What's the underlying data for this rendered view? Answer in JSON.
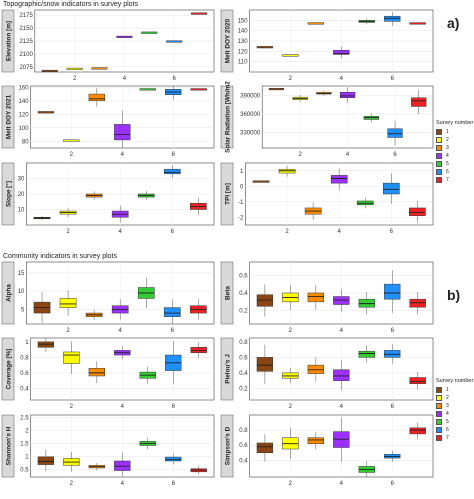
{
  "section_a": {
    "title": "Topographic/snow indicators in survey plots",
    "tag": "a)"
  },
  "section_b": {
    "title": "Community indicators in survey plots",
    "tag": "b)"
  },
  "legend": {
    "title": "Survey number",
    "entries": [
      {
        "label": "1",
        "color": "#8B4513"
      },
      {
        "label": "2",
        "color": "#FFFF00"
      },
      {
        "label": "3",
        "color": "#FF8C00"
      },
      {
        "label": "4",
        "color": "#9B30FF"
      },
      {
        "label": "5",
        "color": "#32CD32"
      },
      {
        "label": "6",
        "color": "#1E90FF"
      },
      {
        "label": "7",
        "color": "#EE2222"
      }
    ]
  },
  "chart_data": [
    {
      "type": "box",
      "ylabel": "Elevation [m]",
      "x_ticks": [
        "2",
        "4",
        "6"
      ],
      "ylim": [
        2065,
        2185
      ],
      "y_ticks": [
        2075,
        2100,
        2125,
        2150,
        2175
      ],
      "boxes": [
        {
          "survey": 1,
          "q1": 2067,
          "median": 2067,
          "q3": 2067
        },
        {
          "survey": 2,
          "q1": 2071,
          "median": 2071,
          "q3": 2071
        },
        {
          "survey": 3,
          "q1": 2072,
          "median": 2072,
          "q3": 2072
        },
        {
          "survey": 4,
          "q1": 2133,
          "median": 2133,
          "q3": 2133
        },
        {
          "survey": 5,
          "q1": 2141,
          "median": 2141,
          "q3": 2141
        },
        {
          "survey": 6,
          "q1": 2124,
          "median": 2124,
          "q3": 2124
        },
        {
          "survey": 7,
          "q1": 2178,
          "median": 2178,
          "q3": 2178
        }
      ]
    },
    {
      "type": "box",
      "ylabel": "Melt DOY 2020",
      "x_ticks": [
        "2",
        "4",
        "6"
      ],
      "ylim": [
        100,
        160
      ],
      "y_ticks": [
        110,
        120,
        130,
        140,
        150
      ],
      "boxes": [
        {
          "survey": 1,
          "q1": 124,
          "median": 124,
          "q3": 124
        },
        {
          "survey": 2,
          "q1": 116,
          "median": 116,
          "q3": 116
        },
        {
          "survey": 3,
          "q1": 147,
          "median": 147,
          "q3": 147
        },
        {
          "survey": 4,
          "q1": 117,
          "median": 118,
          "q3": 121
        },
        {
          "survey": 5,
          "q1": 148,
          "median": 149,
          "q3": 150
        },
        {
          "survey": 6,
          "q1": 149,
          "median": 152,
          "q3": 154
        },
        {
          "survey": 7,
          "q1": 147,
          "median": 147,
          "q3": 147
        }
      ]
    },
    {
      "type": "box",
      "ylabel": "Melt DOY 2021",
      "x_ticks": [
        "2",
        "4",
        "6"
      ],
      "ylim": [
        70,
        162
      ],
      "y_ticks": [
        80,
        100,
        120,
        140,
        160
      ],
      "boxes": [
        {
          "survey": 1,
          "q1": 123,
          "median": 123,
          "q3": 123
        },
        {
          "survey": 2,
          "q1": 81,
          "median": 81,
          "q3": 81
        },
        {
          "survey": 3,
          "q1": 140,
          "median": 143,
          "q3": 150
        },
        {
          "survey": 4,
          "q1": 82,
          "median": 90,
          "q3": 105
        },
        {
          "survey": 5,
          "q1": 157,
          "median": 157,
          "q3": 157
        },
        {
          "survey": 6,
          "q1": 149,
          "median": 153,
          "q3": 157
        },
        {
          "survey": 7,
          "q1": 157,
          "median": 157,
          "q3": 157
        }
      ]
    },
    {
      "type": "box",
      "ylabel": "Solar Radiation [Wh/m2",
      "x_ticks": [
        "2",
        "4",
        "6"
      ],
      "ylim": [
        305000,
        405000
      ],
      "y_ticks": [
        330000,
        360000,
        390000
      ],
      "boxes": [
        {
          "survey": 1,
          "q1": 400000,
          "median": 400000,
          "q3": 400000
        },
        {
          "survey": 2,
          "q1": 383000,
          "median": 385000,
          "q3": 387000
        },
        {
          "survey": 3,
          "q1": 392000,
          "median": 393000,
          "q3": 395000
        },
        {
          "survey": 4,
          "q1": 386000,
          "median": 389000,
          "q3": 395000
        },
        {
          "survey": 5,
          "q1": 351000,
          "median": 354000,
          "q3": 356000
        },
        {
          "survey": 6,
          "q1": 322000,
          "median": 328000,
          "q3": 336000
        },
        {
          "survey": 7,
          "q1": 372000,
          "median": 381000,
          "q3": 386000
        }
      ]
    },
    {
      "type": "box",
      "ylabel": "Slope [°]",
      "x_ticks": [
        "2",
        "4",
        "6"
      ],
      "ylim": [
        0,
        40
      ],
      "y_ticks": [
        10,
        20,
        30
      ],
      "boxes": [
        {
          "survey": 1,
          "q1": 4,
          "median": 4.5,
          "q3": 5
        },
        {
          "survey": 2,
          "q1": 7,
          "median": 8,
          "q3": 9
        },
        {
          "survey": 3,
          "q1": 18,
          "median": 19,
          "q3": 20
        },
        {
          "survey": 4,
          "q1": 5,
          "median": 7,
          "q3": 9
        },
        {
          "survey": 5,
          "q1": 18,
          "median": 19,
          "q3": 20
        },
        {
          "survey": 6,
          "q1": 33,
          "median": 34,
          "q3": 36
        },
        {
          "survey": 7,
          "q1": 10,
          "median": 12,
          "q3": 14
        }
      ]
    },
    {
      "type": "box",
      "ylabel": "TPI [m]",
      "x_ticks": [
        "2",
        "4",
        "6"
      ],
      "ylim": [
        -2.5,
        1.5
      ],
      "y_ticks": [
        -2,
        -1,
        0,
        1
      ],
      "boxes": [
        {
          "survey": 1,
          "q1": 0.3,
          "median": 0.3,
          "q3": 0.3
        },
        {
          "survey": 2,
          "q1": 0.85,
          "median": 1.0,
          "q3": 1.1
        },
        {
          "survey": 3,
          "q1": -1.8,
          "median": -1.6,
          "q3": -1.4
        },
        {
          "survey": 4,
          "q1": 0.2,
          "median": 0.5,
          "q3": 0.7
        },
        {
          "survey": 5,
          "q1": -1.2,
          "median": -1.1,
          "q3": -0.95
        },
        {
          "survey": 6,
          "q1": -0.5,
          "median": -0.2,
          "q3": 0.2
        },
        {
          "survey": 7,
          "q1": -1.9,
          "median": -1.7,
          "q3": -1.4
        }
      ]
    },
    {
      "type": "box",
      "ylabel": "Alpha",
      "x_ticks": [
        "2",
        "4",
        "6"
      ],
      "ylim": [
        1,
        18
      ],
      "y_ticks": [
        5,
        10,
        15
      ],
      "boxes": [
        {
          "survey": 1,
          "q1": 4,
          "median": 5.5,
          "q3": 7
        },
        {
          "survey": 2,
          "q1": 5.5,
          "median": 6.5,
          "q3": 8
        },
        {
          "survey": 3,
          "q1": 3,
          "median": 3.5,
          "q3": 4
        },
        {
          "survey": 4,
          "q1": 4,
          "median": 5,
          "q3": 6
        },
        {
          "survey": 5,
          "q1": 8,
          "median": 9.5,
          "q3": 11
        },
        {
          "survey": 6,
          "q1": 3,
          "median": 4,
          "q3": 5.5
        },
        {
          "survey": 7,
          "q1": 4,
          "median": 5,
          "q3": 6
        }
      ]
    },
    {
      "type": "box",
      "ylabel": "Beta",
      "x_ticks": [
        "2",
        "4",
        "6"
      ],
      "ylim": [
        0.05,
        0.75
      ],
      "y_ticks": [
        0.2,
        0.4,
        0.6
      ],
      "boxes": [
        {
          "survey": 1,
          "q1": 0.25,
          "median": 0.32,
          "q3": 0.38
        },
        {
          "survey": 2,
          "q1": 0.3,
          "median": 0.35,
          "q3": 0.4
        },
        {
          "survey": 3,
          "q1": 0.3,
          "median": 0.36,
          "q3": 0.4
        },
        {
          "survey": 4,
          "q1": 0.27,
          "median": 0.32,
          "q3": 0.36
        },
        {
          "survey": 5,
          "q1": 0.24,
          "median": 0.28,
          "q3": 0.33
        },
        {
          "survey": 6,
          "q1": 0.33,
          "median": 0.4,
          "q3": 0.5
        },
        {
          "survey": 7,
          "q1": 0.24,
          "median": 0.29,
          "q3": 0.33
        }
      ]
    },
    {
      "type": "box",
      "ylabel": "Coverage [%]",
      "x_ticks": [
        "2",
        "4",
        "6"
      ],
      "ylim": [
        0.25,
        1.05
      ],
      "y_ticks": [
        0.4,
        0.6,
        0.8,
        1.0
      ],
      "boxes": [
        {
          "survey": 1,
          "q1": 0.93,
          "median": 0.97,
          "q3": 1.0
        },
        {
          "survey": 2,
          "q1": 0.72,
          "median": 0.83,
          "q3": 0.87
        },
        {
          "survey": 3,
          "q1": 0.56,
          "median": 0.6,
          "q3": 0.66
        },
        {
          "survey": 4,
          "q1": 0.83,
          "median": 0.86,
          "q3": 0.89
        },
        {
          "survey": 5,
          "q1": 0.53,
          "median": 0.57,
          "q3": 0.61
        },
        {
          "survey": 6,
          "q1": 0.63,
          "median": 0.73,
          "q3": 0.83
        },
        {
          "survey": 7,
          "q1": 0.86,
          "median": 0.89,
          "q3": 0.93
        }
      ]
    },
    {
      "type": "box",
      "ylabel": "Pielou's J",
      "x_ticks": [
        "2",
        "4",
        "6"
      ],
      "ylim": [
        0.05,
        0.85
      ],
      "y_ticks": [
        0.2,
        0.4,
        0.6,
        0.8
      ],
      "boxes": [
        {
          "survey": 1,
          "q1": 0.42,
          "median": 0.5,
          "q3": 0.6
        },
        {
          "survey": 2,
          "q1": 0.33,
          "median": 0.36,
          "q3": 0.4
        },
        {
          "survey": 3,
          "q1": 0.39,
          "median": 0.44,
          "q3": 0.5
        },
        {
          "survey": 4,
          "q1": 0.3,
          "median": 0.36,
          "q3": 0.44
        },
        {
          "survey": 5,
          "q1": 0.6,
          "median": 0.65,
          "q3": 0.68
        },
        {
          "survey": 6,
          "q1": 0.6,
          "median": 0.64,
          "q3": 0.69
        },
        {
          "survey": 7,
          "q1": 0.26,
          "median": 0.29,
          "q3": 0.34
        }
      ]
    },
    {
      "type": "box",
      "ylabel": "Shannon's H",
      "x_ticks": [
        "2",
        "4",
        "6"
      ],
      "ylim": [
        0.2,
        2.6
      ],
      "y_ticks": [
        0.5,
        1.0,
        1.5,
        2.0,
        2.5
      ],
      "boxes": [
        {
          "survey": 1,
          "q1": 0.68,
          "median": 0.8,
          "q3": 0.98
        },
        {
          "survey": 2,
          "q1": 0.65,
          "median": 0.78,
          "q3": 0.92
        },
        {
          "survey": 3,
          "q1": 0.55,
          "median": 0.6,
          "q3": 0.65
        },
        {
          "survey": 4,
          "q1": 0.45,
          "median": 0.62,
          "q3": 0.82
        },
        {
          "survey": 5,
          "q1": 1.42,
          "median": 1.5,
          "q3": 1.58
        },
        {
          "survey": 6,
          "q1": 0.82,
          "median": 0.87,
          "q3": 0.97
        },
        {
          "survey": 7,
          "q1": 0.4,
          "median": 0.47,
          "q3": 0.52
        }
      ]
    },
    {
      "type": "box",
      "ylabel": "Simpson's D",
      "x_ticks": [
        "2",
        "4",
        "6"
      ],
      "ylim": [
        0.18,
        1.0
      ],
      "y_ticks": [
        0.4,
        0.6,
        0.8
      ],
      "boxes": [
        {
          "survey": 1,
          "q1": 0.5,
          "median": 0.58,
          "q3": 0.63
        },
        {
          "survey": 2,
          "q1": 0.55,
          "median": 0.62,
          "q3": 0.7
        },
        {
          "survey": 3,
          "q1": 0.62,
          "median": 0.67,
          "q3": 0.7
        },
        {
          "survey": 4,
          "q1": 0.57,
          "median": 0.68,
          "q3": 0.78
        },
        {
          "survey": 5,
          "q1": 0.24,
          "median": 0.28,
          "q3": 0.32
        },
        {
          "survey": 6,
          "q1": 0.43,
          "median": 0.45,
          "q3": 0.48
        },
        {
          "survey": 7,
          "q1": 0.75,
          "median": 0.8,
          "q3": 0.83
        }
      ]
    }
  ]
}
